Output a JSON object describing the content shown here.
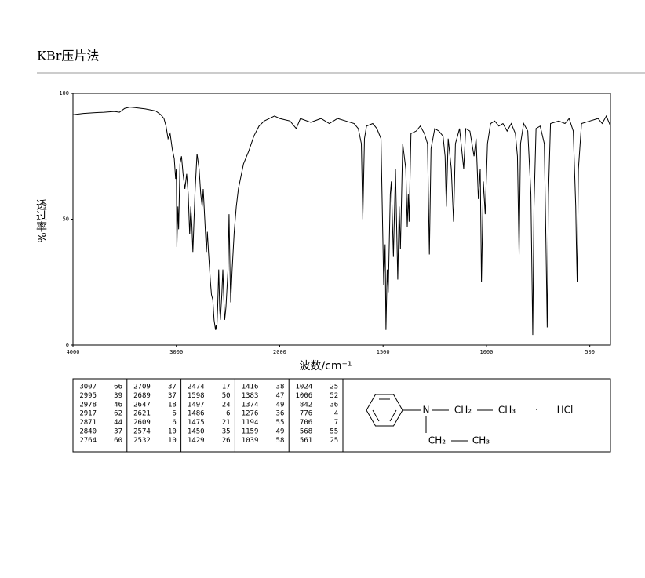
{
  "header": {
    "title": "KBr压片法"
  },
  "chart_data": {
    "type": "line",
    "xlabel": "波数/cm⁻¹",
    "ylabel": "透过率%",
    "color": "#000000",
    "xlim": [
      4000,
      400
    ],
    "xticks": [
      4000,
      3000,
      2000,
      1500,
      1000,
      500
    ],
    "ylim": [
      0,
      100
    ],
    "yticks": [
      0,
      50,
      100
    ],
    "x": [
      4000,
      3900,
      3800,
      3700,
      3600,
      3550,
      3500,
      3450,
      3400,
      3300,
      3200,
      3150,
      3120,
      3100,
      3080,
      3060,
      3040,
      3020,
      3007,
      3000,
      2995,
      2985,
      2978,
      2965,
      2950,
      2935,
      2917,
      2900,
      2885,
      2871,
      2860,
      2850,
      2840,
      2820,
      2800,
      2780,
      2764,
      2750,
      2740,
      2725,
      2709,
      2700,
      2689,
      2670,
      2660,
      2647,
      2635,
      2621,
      2615,
      2609,
      2600,
      2590,
      2580,
      2574,
      2560,
      2550,
      2540,
      2532,
      2520,
      2500,
      2490,
      2480,
      2474,
      2460,
      2440,
      2420,
      2400,
      2350,
      2300,
      2250,
      2200,
      2150,
      2100,
      2050,
      2000,
      1950,
      1920,
      1900,
      1850,
      1800,
      1760,
      1720,
      1680,
      1640,
      1620,
      1605,
      1598,
      1590,
      1580,
      1550,
      1530,
      1510,
      1497,
      1490,
      1486,
      1480,
      1475,
      1465,
      1460,
      1450,
      1440,
      1429,
      1422,
      1416,
      1405,
      1390,
      1383,
      1378,
      1374,
      1365,
      1340,
      1320,
      1300,
      1285,
      1276,
      1268,
      1250,
      1230,
      1210,
      1200,
      1194,
      1185,
      1170,
      1159,
      1150,
      1130,
      1110,
      1100,
      1080,
      1060,
      1050,
      1039,
      1030,
      1024,
      1015,
      1006,
      995,
      980,
      960,
      940,
      920,
      900,
      880,
      860,
      850,
      842,
      835,
      820,
      800,
      785,
      776,
      770,
      760,
      740,
      720,
      712,
      706,
      700,
      690,
      650,
      620,
      600,
      580,
      568,
      565,
      561,
      555,
      540,
      500,
      460,
      440,
      420,
      400
    ],
    "values": [
      91.5,
      92,
      92.3,
      92.5,
      92.8,
      92.5,
      94,
      94.5,
      94.3,
      93.8,
      93,
      91.5,
      90,
      87,
      82,
      84,
      78,
      74,
      66,
      70,
      39,
      55,
      46,
      72,
      75,
      68,
      62,
      68,
      60,
      44,
      55,
      48,
      37,
      60,
      76,
      70,
      60,
      55,
      62,
      50,
      37,
      45,
      37,
      25,
      20,
      18,
      10,
      6,
      8,
      6,
      15,
      30,
      14,
      10,
      20,
      30,
      18,
      10,
      15,
      30,
      52,
      28,
      17,
      30,
      45,
      55,
      62,
      72,
      77,
      83,
      87,
      89,
      90,
      91,
      90,
      89,
      86,
      90,
      88.5,
      90,
      88,
      90,
      89,
      88,
      86,
      80,
      50,
      82,
      87,
      88,
      86,
      82,
      24,
      40,
      6,
      30,
      21,
      60,
      65,
      35,
      70,
      26,
      55,
      38,
      80,
      70,
      47,
      60,
      49,
      84,
      85,
      87,
      84,
      80,
      36,
      78,
      86,
      85,
      83,
      75,
      55,
      82,
      70,
      49,
      80,
      86,
      70,
      86,
      85,
      75,
      82,
      58,
      70,
      25,
      65,
      52,
      80,
      88,
      89,
      87,
      88,
      85,
      88,
      84,
      75,
      36,
      80,
      88,
      85,
      60,
      4,
      55,
      86,
      87,
      80,
      40,
      7,
      60,
      88,
      89,
      88,
      90,
      85,
      55,
      40,
      25,
      70,
      88,
      89,
      90,
      88,
      91,
      87
    ]
  },
  "peak_table": [
    [
      3007,
      66
    ],
    [
      2995,
      39
    ],
    [
      2978,
      46
    ],
    [
      2917,
      62
    ],
    [
      2871,
      44
    ],
    [
      2840,
      37
    ],
    [
      2764,
      60
    ],
    [
      2709,
      37
    ],
    [
      2689,
      37
    ],
    [
      2647,
      18
    ],
    [
      2621,
      6
    ],
    [
      2609,
      6
    ],
    [
      2574,
      10
    ],
    [
      2532,
      10
    ],
    [
      2474,
      17
    ],
    [
      1598,
      50
    ],
    [
      1497,
      24
    ],
    [
      1486,
      6
    ],
    [
      1475,
      21
    ],
    [
      1450,
      35
    ],
    [
      1429,
      26
    ],
    [
      1416,
      38
    ],
    [
      1383,
      47
    ],
    [
      1374,
      49
    ],
    [
      1276,
      36
    ],
    [
      1194,
      55
    ],
    [
      1159,
      49
    ],
    [
      1039,
      58
    ],
    [
      1024,
      25
    ],
    [
      1006,
      52
    ],
    [
      842,
      36
    ],
    [
      776,
      4
    ],
    [
      706,
      7
    ],
    [
      568,
      55
    ],
    [
      561,
      25
    ]
  ],
  "structure": {
    "n": "N",
    "ch2a": "CH₂",
    "ch3a": "CH₃",
    "dot": "·",
    "hcl": "HCl",
    "ch2b": "CH₂",
    "ch3b": "CH₃"
  }
}
